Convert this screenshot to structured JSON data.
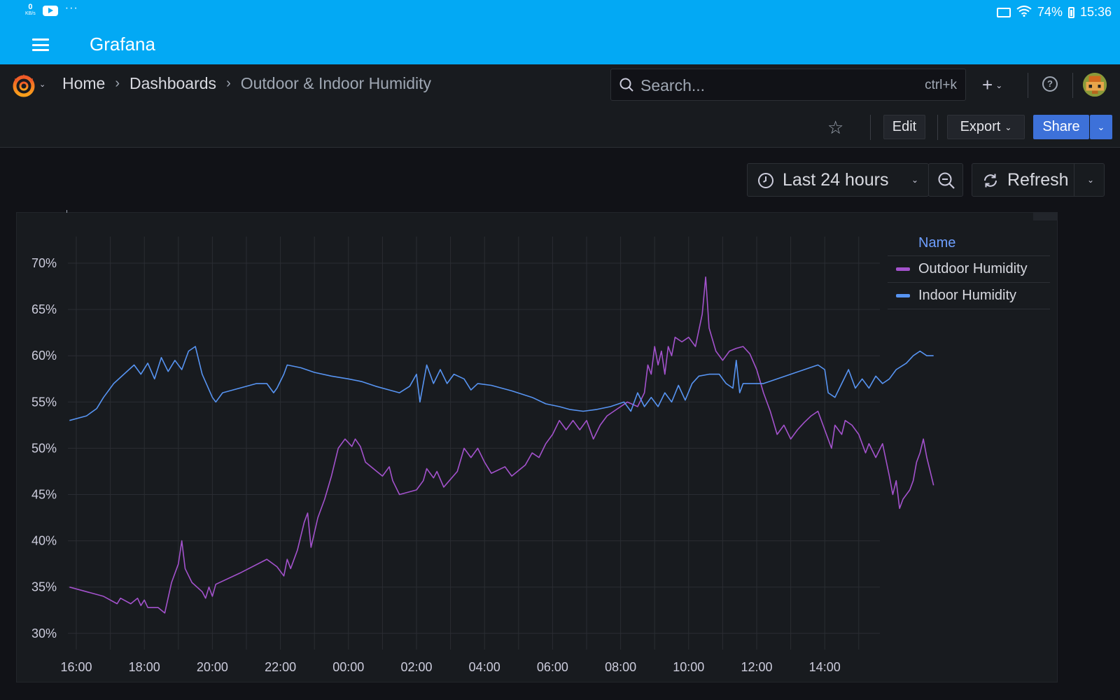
{
  "statusbar": {
    "kbs_value": "0",
    "kbs_unit": "KB/s",
    "battery": "74%",
    "time": "15:36"
  },
  "app": {
    "title": "Grafana"
  },
  "nav": {
    "breadcrumbs": [
      {
        "label": "Home"
      },
      {
        "label": "Dashboards"
      },
      {
        "label": "Outdoor & Indoor Humidity"
      }
    ],
    "search_placeholder": "Search...",
    "search_shortcut": "ctrl+k"
  },
  "toolbar": {
    "edit_label": "Edit",
    "export_label": "Export",
    "share_label": "Share"
  },
  "controls": {
    "time_range_label": "Last 24 hours",
    "refresh_label": "Refresh"
  },
  "legend": {
    "header": "Name"
  },
  "colors": {
    "outdoor": "#a352cc",
    "indoor": "#5794f2",
    "accent": "#03a9f4",
    "share": "#3d71d9"
  },
  "chart_data": {
    "type": "line",
    "y_ticks": [
      "70%",
      "65%",
      "60%",
      "55%",
      "50%",
      "45%",
      "40%",
      "35%",
      "30%"
    ],
    "x_ticks": [
      "16:00",
      "18:00",
      "20:00",
      "22:00",
      "00:00",
      "02:00",
      "04:00",
      "06:00",
      "08:00",
      "10:00",
      "12:00",
      "14:00"
    ],
    "ylim": [
      28,
      72
    ],
    "x_range_hours": [
      15.8,
      39.65
    ],
    "series": [
      {
        "name": "Outdoor Humidity",
        "color": "#a352cc",
        "points": [
          [
            15.8,
            35
          ],
          [
            16.8,
            34
          ],
          [
            17.2,
            33.2
          ],
          [
            17.3,
            33.8
          ],
          [
            17.6,
            33.2
          ],
          [
            17.8,
            33.8
          ],
          [
            17.9,
            33
          ],
          [
            18.0,
            33.6
          ],
          [
            18.1,
            32.8
          ],
          [
            18.4,
            32.8
          ],
          [
            18.6,
            32.2
          ],
          [
            18.8,
            35.5
          ],
          [
            19.0,
            37.5
          ],
          [
            19.1,
            40
          ],
          [
            19.2,
            37
          ],
          [
            19.4,
            35.5
          ],
          [
            19.7,
            34.5
          ],
          [
            19.8,
            33.8
          ],
          [
            19.9,
            35
          ],
          [
            20.0,
            34
          ],
          [
            20.1,
            35.3
          ],
          [
            20.8,
            36.5
          ],
          [
            21.6,
            38
          ],
          [
            21.9,
            37.2
          ],
          [
            22.1,
            36.2
          ],
          [
            22.2,
            38
          ],
          [
            22.3,
            37
          ],
          [
            22.5,
            39
          ],
          [
            22.7,
            42
          ],
          [
            22.8,
            43
          ],
          [
            22.9,
            39.3
          ],
          [
            23.1,
            42.5
          ],
          [
            23.3,
            44.5
          ],
          [
            23.5,
            47
          ],
          [
            23.7,
            50
          ],
          [
            23.9,
            51
          ],
          [
            24.1,
            50.2
          ],
          [
            24.2,
            51
          ],
          [
            24.35,
            50.2
          ],
          [
            24.5,
            48.5
          ],
          [
            25.0,
            47
          ],
          [
            25.2,
            48
          ],
          [
            25.3,
            46.5
          ],
          [
            25.5,
            45
          ],
          [
            26.0,
            45.5
          ],
          [
            26.2,
            46.5
          ],
          [
            26.3,
            47.8
          ],
          [
            26.5,
            46.8
          ],
          [
            26.6,
            47.5
          ],
          [
            26.8,
            45.8
          ],
          [
            27.2,
            47.5
          ],
          [
            27.4,
            50
          ],
          [
            27.6,
            49
          ],
          [
            27.8,
            50
          ],
          [
            28.0,
            48.5
          ],
          [
            28.2,
            47.3
          ],
          [
            28.6,
            48
          ],
          [
            28.8,
            47
          ],
          [
            29.2,
            48.2
          ],
          [
            29.4,
            49.5
          ],
          [
            29.6,
            49
          ],
          [
            29.8,
            50.5
          ],
          [
            30.0,
            51.5
          ],
          [
            30.2,
            53
          ],
          [
            30.4,
            52
          ],
          [
            30.6,
            53
          ],
          [
            30.8,
            52
          ],
          [
            31.0,
            53
          ],
          [
            31.2,
            51
          ],
          [
            31.4,
            52.5
          ],
          [
            31.6,
            53.5
          ],
          [
            31.8,
            54
          ],
          [
            32.2,
            55
          ],
          [
            32.5,
            54.5
          ],
          [
            32.7,
            56
          ],
          [
            32.8,
            59
          ],
          [
            32.9,
            58
          ],
          [
            33.0,
            61
          ],
          [
            33.1,
            59
          ],
          [
            33.2,
            60.5
          ],
          [
            33.3,
            58
          ],
          [
            33.4,
            61
          ],
          [
            33.5,
            60
          ],
          [
            33.6,
            62
          ],
          [
            33.8,
            61.5
          ],
          [
            34.0,
            62
          ],
          [
            34.2,
            61
          ],
          [
            34.4,
            64.5
          ],
          [
            34.5,
            68.5
          ],
          [
            34.6,
            63
          ],
          [
            34.8,
            60.5
          ],
          [
            35.0,
            59.5
          ],
          [
            35.2,
            60.5
          ],
          [
            35.4,
            60.8
          ],
          [
            35.6,
            61
          ],
          [
            35.8,
            60.2
          ],
          [
            36.0,
            58.5
          ],
          [
            36.2,
            56
          ],
          [
            36.4,
            54
          ],
          [
            36.6,
            51.5
          ],
          [
            36.8,
            52.5
          ],
          [
            37.0,
            51
          ],
          [
            37.2,
            52
          ],
          [
            37.4,
            52.8
          ],
          [
            37.6,
            53.5
          ],
          [
            37.8,
            54
          ],
          [
            38.0,
            52
          ],
          [
            38.2,
            50
          ],
          [
            38.3,
            52.5
          ],
          [
            38.5,
            51.5
          ],
          [
            38.6,
            53
          ],
          [
            38.8,
            52.5
          ],
          [
            39.0,
            51.5
          ],
          [
            39.2,
            49.5
          ],
          [
            39.3,
            50.5
          ],
          [
            39.5,
            49
          ],
          [
            39.7,
            50.5
          ],
          [
            39.9,
            47
          ],
          [
            40.0,
            45
          ],
          [
            40.1,
            46.5
          ],
          [
            40.2,
            43.5
          ],
          [
            40.3,
            44.5
          ],
          [
            40.5,
            45.5
          ],
          [
            40.6,
            46.5
          ],
          [
            40.7,
            48.5
          ],
          [
            40.8,
            49.5
          ],
          [
            40.9,
            51
          ],
          [
            41.0,
            49
          ],
          [
            41.1,
            47.5
          ],
          [
            41.2,
            46
          ]
        ]
      },
      {
        "name": "Indoor Humidity",
        "color": "#5794f2",
        "points": [
          [
            15.8,
            53
          ],
          [
            16.3,
            53.5
          ],
          [
            16.6,
            54.3
          ],
          [
            16.8,
            55.5
          ],
          [
            17.1,
            57
          ],
          [
            17.4,
            58
          ],
          [
            17.7,
            59
          ],
          [
            17.9,
            58
          ],
          [
            18.1,
            59.2
          ],
          [
            18.3,
            57.5
          ],
          [
            18.5,
            59.8
          ],
          [
            18.7,
            58.3
          ],
          [
            18.9,
            59.5
          ],
          [
            19.1,
            58.5
          ],
          [
            19.3,
            60.5
          ],
          [
            19.5,
            61
          ],
          [
            19.7,
            58
          ],
          [
            20.0,
            55.5
          ],
          [
            20.1,
            55
          ],
          [
            20.3,
            56
          ],
          [
            20.8,
            56.5
          ],
          [
            21.3,
            57
          ],
          [
            21.6,
            57
          ],
          [
            21.8,
            56
          ],
          [
            21.9,
            56.5
          ],
          [
            22.1,
            58
          ],
          [
            22.2,
            59
          ],
          [
            22.6,
            58.7
          ],
          [
            23.0,
            58.2
          ],
          [
            23.5,
            57.8
          ],
          [
            24.0,
            57.5
          ],
          [
            24.4,
            57.2
          ],
          [
            24.8,
            56.7
          ],
          [
            25.2,
            56.3
          ],
          [
            25.5,
            56
          ],
          [
            25.8,
            56.7
          ],
          [
            26.0,
            58
          ],
          [
            26.1,
            55
          ],
          [
            26.3,
            59
          ],
          [
            26.5,
            57
          ],
          [
            26.7,
            58.5
          ],
          [
            26.9,
            57
          ],
          [
            27.1,
            58
          ],
          [
            27.4,
            57.5
          ],
          [
            27.6,
            56.3
          ],
          [
            27.8,
            57
          ],
          [
            28.2,
            56.8
          ],
          [
            28.8,
            56.2
          ],
          [
            29.4,
            55.5
          ],
          [
            29.8,
            54.8
          ],
          [
            30.2,
            54.5
          ],
          [
            30.5,
            54.2
          ],
          [
            30.9,
            54
          ],
          [
            31.3,
            54.2
          ],
          [
            31.7,
            54.5
          ],
          [
            32.1,
            55
          ],
          [
            32.3,
            54
          ],
          [
            32.5,
            56
          ],
          [
            32.7,
            54.5
          ],
          [
            32.9,
            55.5
          ],
          [
            33.1,
            54.5
          ],
          [
            33.3,
            56
          ],
          [
            33.5,
            55
          ],
          [
            33.7,
            56.8
          ],
          [
            33.9,
            55.2
          ],
          [
            34.1,
            57
          ],
          [
            34.3,
            57.8
          ],
          [
            34.6,
            58
          ],
          [
            34.9,
            58
          ],
          [
            35.0,
            57.5
          ],
          [
            35.1,
            57
          ],
          [
            35.3,
            56.5
          ],
          [
            35.4,
            59.5
          ],
          [
            35.5,
            56
          ],
          [
            35.6,
            57
          ],
          [
            35.9,
            57
          ],
          [
            36.2,
            57
          ],
          [
            36.6,
            57.5
          ],
          [
            37.0,
            58
          ],
          [
            37.4,
            58.5
          ],
          [
            37.8,
            59
          ],
          [
            38.0,
            58.5
          ],
          [
            38.1,
            56
          ],
          [
            38.3,
            55.5
          ],
          [
            38.5,
            57
          ],
          [
            38.7,
            58.5
          ],
          [
            38.9,
            56.5
          ],
          [
            39.1,
            57.5
          ],
          [
            39.3,
            56.5
          ],
          [
            39.5,
            57.8
          ],
          [
            39.7,
            57
          ],
          [
            39.9,
            57.5
          ],
          [
            40.1,
            58.5
          ],
          [
            40.4,
            59.2
          ],
          [
            40.6,
            60
          ],
          [
            40.8,
            60.5
          ],
          [
            41.0,
            60
          ],
          [
            41.2,
            60
          ]
        ]
      }
    ]
  }
}
